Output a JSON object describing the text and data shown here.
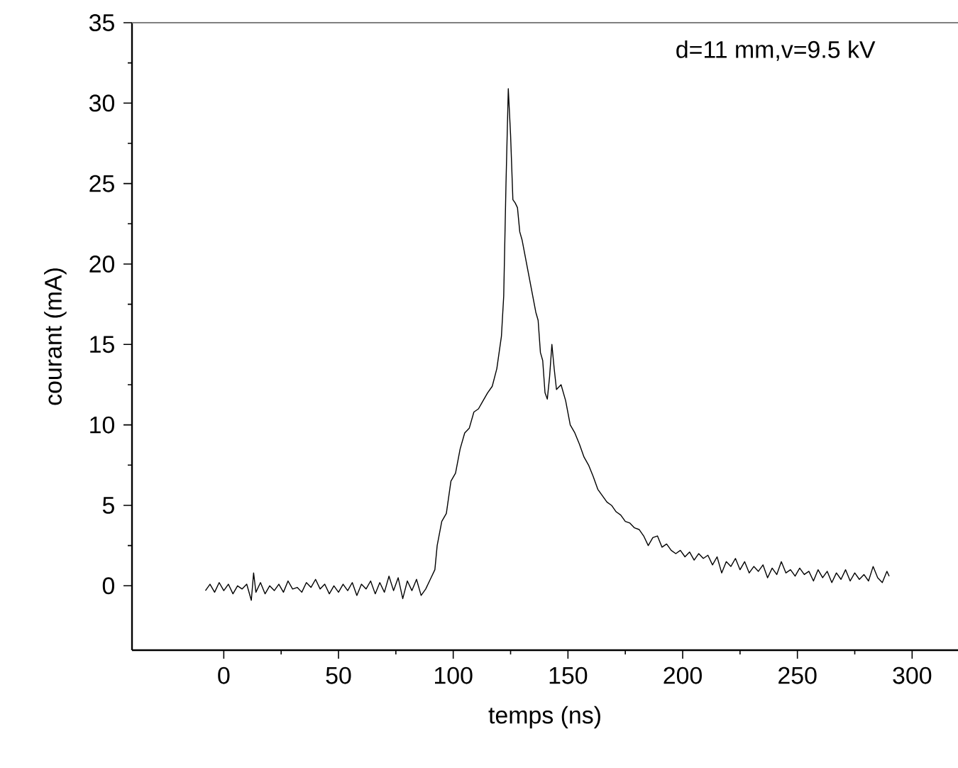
{
  "chart_data": {
    "type": "line",
    "xlabel": "temps (ns)",
    "ylabel": "courant (mA)",
    "annotations": [
      "d=11 mm,v=9.5 kV"
    ],
    "color": "#000000",
    "xlim": [
      -40,
      320
    ],
    "ylim": [
      -4,
      35
    ],
    "xticks": [
      0,
      50,
      100,
      150,
      200,
      250,
      300
    ],
    "yticks": [
      0,
      5,
      10,
      15,
      20,
      25,
      30,
      35
    ],
    "x": [
      -8,
      -6,
      -4,
      -2,
      0,
      2,
      4,
      6,
      8,
      10,
      12,
      13,
      14,
      16,
      18,
      20,
      22,
      24,
      26,
      28,
      30,
      32,
      34,
      36,
      38,
      40,
      42,
      44,
      46,
      48,
      50,
      52,
      54,
      56,
      58,
      60,
      62,
      64,
      66,
      68,
      70,
      72,
      74,
      76,
      78,
      80,
      82,
      84,
      86,
      88,
      90,
      92,
      93,
      95,
      97,
      99,
      101,
      103,
      105,
      107,
      109,
      111,
      113,
      115,
      117,
      119,
      121,
      122,
      123,
      124,
      125,
      126,
      127,
      128,
      129,
      130,
      132,
      134,
      136,
      137,
      138,
      139,
      140,
      141,
      142,
      143,
      144,
      145,
      147,
      149,
      151,
      153,
      155,
      157,
      159,
      161,
      163,
      165,
      167,
      169,
      171,
      173,
      175,
      177,
      179,
      181,
      183,
      185,
      187,
      189,
      191,
      193,
      195,
      197,
      199,
      201,
      203,
      205,
      207,
      209,
      211,
      213,
      215,
      217,
      219,
      221,
      223,
      225,
      227,
      229,
      231,
      233,
      235,
      237,
      239,
      241,
      243,
      245,
      247,
      249,
      251,
      253,
      255,
      257,
      259,
      261,
      263,
      265,
      267,
      269,
      271,
      273,
      275,
      277,
      279,
      281,
      283,
      285,
      287,
      289,
      290
    ],
    "values": [
      -0.3,
      0.1,
      -0.4,
      0.2,
      -0.3,
      0.1,
      -0.5,
      0,
      -0.2,
      0.1,
      -0.9,
      0.8,
      -0.4,
      0.2,
      -0.5,
      0,
      -0.3,
      0.1,
      -0.4,
      0.3,
      -0.2,
      -0.1,
      -0.4,
      0.2,
      -0.1,
      0.4,
      -0.2,
      0.1,
      -0.5,
      0,
      -0.4,
      0.1,
      -0.3,
      0.2,
      -0.6,
      0.1,
      -0.2,
      0.3,
      -0.5,
      0.2,
      -0.4,
      0.6,
      -0.3,
      0.5,
      -0.8,
      0.3,
      -0.3,
      0.4,
      -0.6,
      -0.2,
      0.4,
      1.0,
      2.5,
      4,
      4.5,
      6.5,
      7,
      8.5,
      9.5,
      9.8,
      10.8,
      11,
      11.5,
      12,
      12.4,
      13.5,
      15.5,
      18,
      25,
      30.9,
      28,
      24,
      23.8,
      23.5,
      22,
      21.5,
      20,
      18.5,
      17,
      16.5,
      14.5,
      14,
      12,
      11.6,
      13,
      15,
      13.5,
      12.2,
      12.5,
      11.5,
      10,
      9.5,
      8.8,
      8,
      7.5,
      6.8,
      6,
      5.6,
      5.2,
      5,
      4.6,
      4.4,
      4,
      3.9,
      3.6,
      3.5,
      3.1,
      2.5,
      3,
      3.1,
      2.4,
      2.6,
      2.2,
      2.0,
      2.2,
      1.8,
      2.1,
      1.6,
      2.0,
      1.7,
      1.9,
      1.3,
      1.8,
      0.8,
      1.5,
      1.2,
      1.7,
      1.0,
      1.5,
      0.8,
      1.2,
      0.9,
      1.3,
      0.5,
      1.1,
      0.7,
      1.5,
      0.8,
      1.0,
      0.6,
      1.1,
      0.7,
      0.9,
      0.3,
      1.0,
      0.5,
      0.9,
      0.2,
      0.8,
      0.4,
      1.0,
      0.3,
      0.8,
      0.4,
      0.7,
      0.3,
      1.2,
      0.5,
      0.2,
      0.9,
      0.6
    ]
  }
}
